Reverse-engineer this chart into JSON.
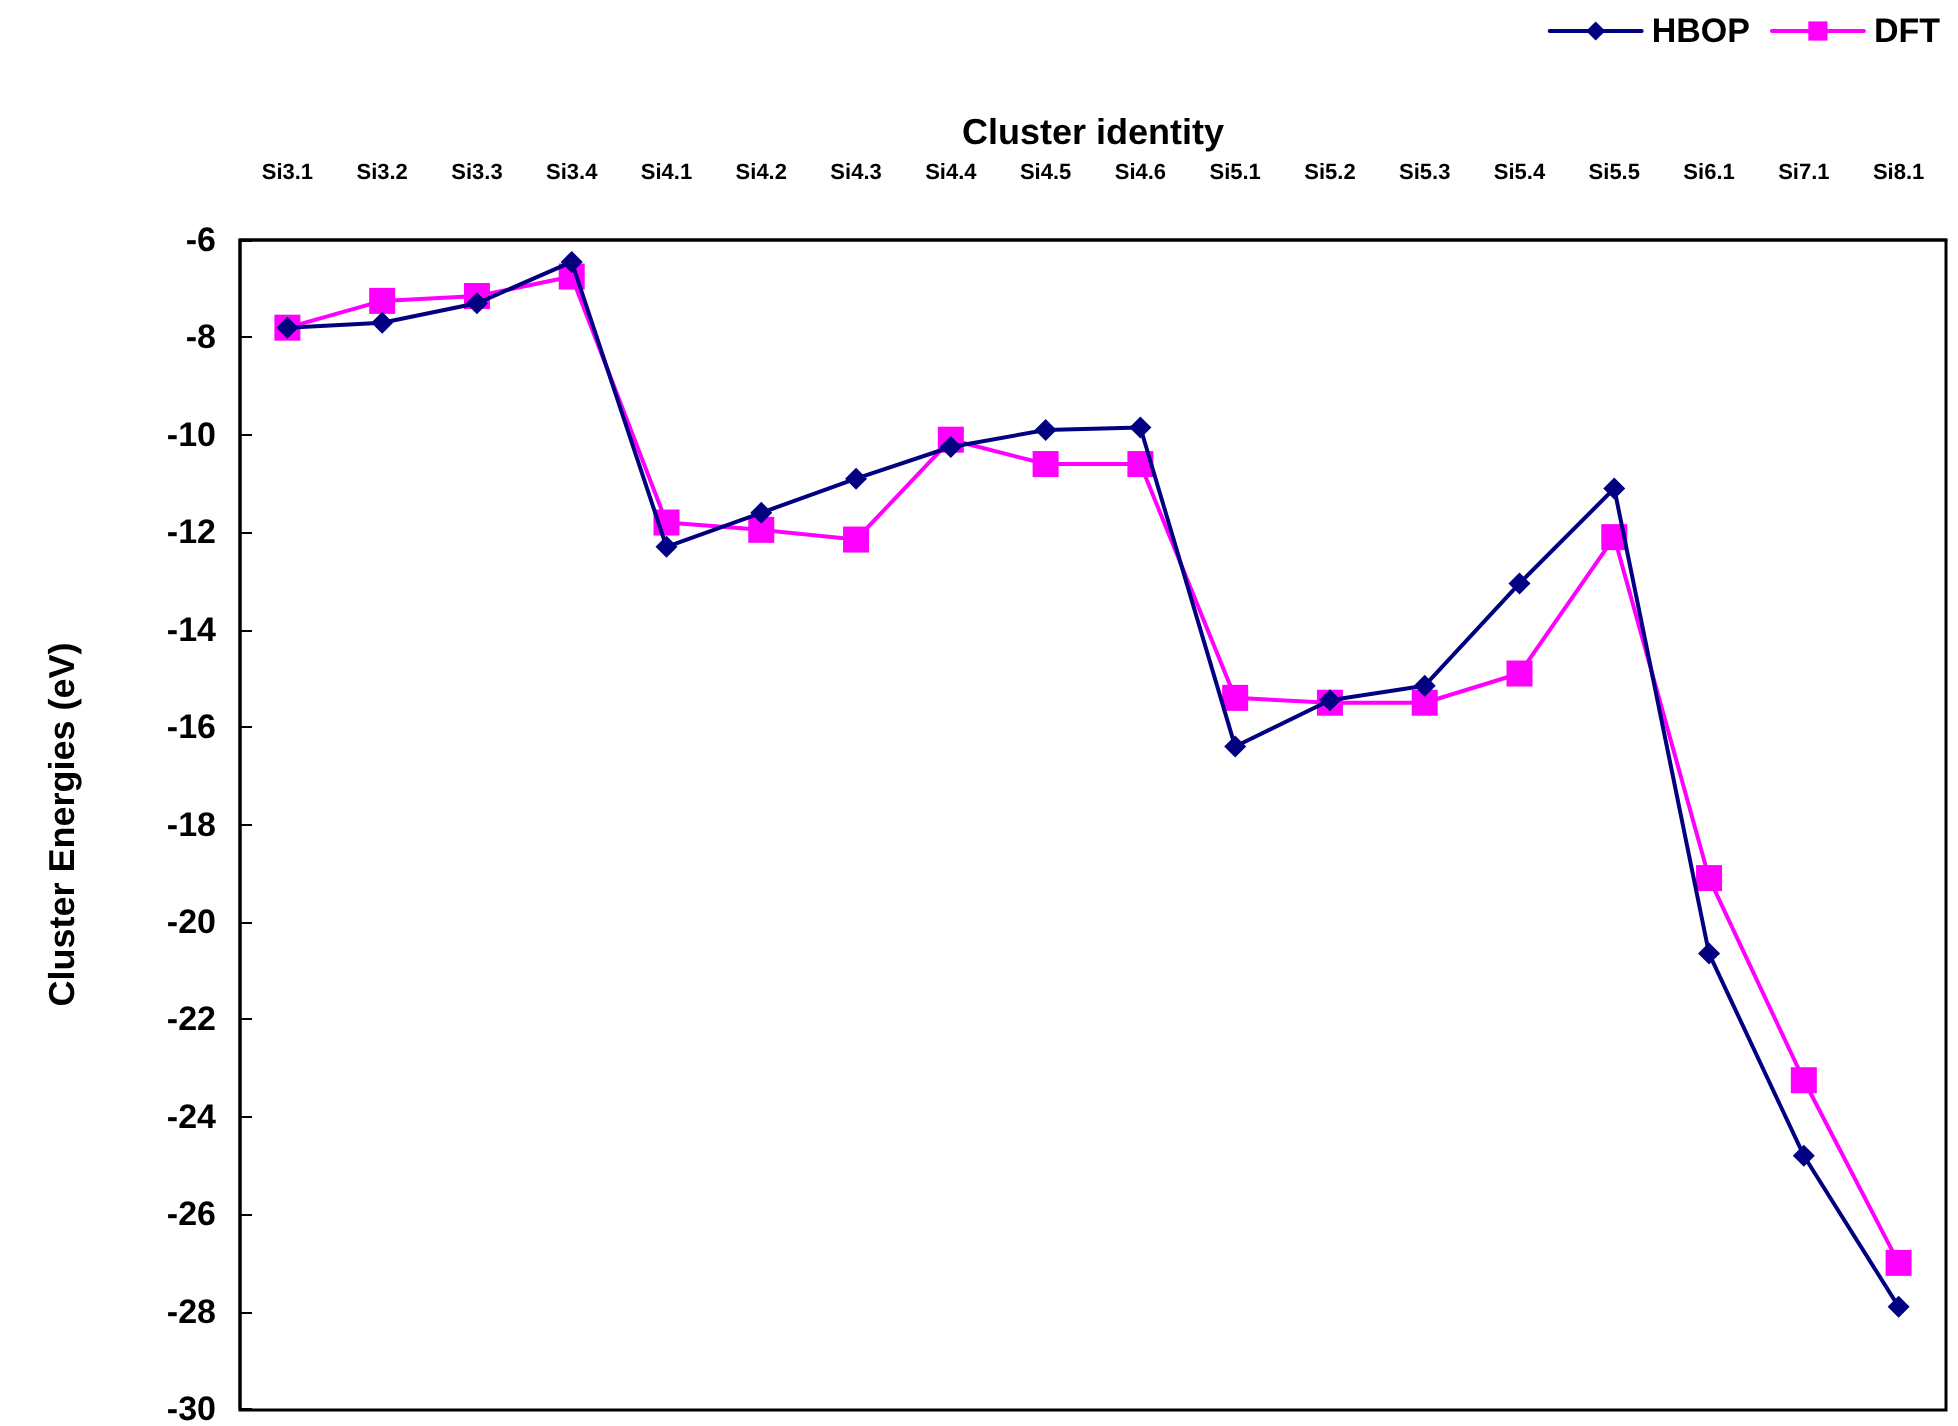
{
  "chart_data": {
    "type": "line",
    "xlabel": "Cluster identity",
    "ylabel": "Cluster Energies (eV)",
    "categories": [
      "Si3.1",
      "Si3.2",
      "Si3.3",
      "Si3.4",
      "Si4.1",
      "Si4.2",
      "Si4.3",
      "Si4.4",
      "Si4.5",
      "Si4.6",
      "Si5.1",
      "Si5.2",
      "Si5.3",
      "Si5.4",
      "Si5.5",
      "Si6.1",
      "Si7.1",
      "Si8.1"
    ],
    "series": [
      {
        "name": "HBOP",
        "color": "#000080",
        "marker": "diamond",
        "values": [
          -7.8,
          -7.7,
          -7.3,
          -6.45,
          -12.3,
          -11.6,
          -10.9,
          -10.25,
          -9.9,
          -9.85,
          -16.4,
          -15.45,
          -15.15,
          -13.05,
          -11.1,
          -20.65,
          -24.8,
          -27.9
        ]
      },
      {
        "name": "DFT",
        "color": "#ff00ff",
        "marker": "square",
        "values": [
          -7.8,
          -7.25,
          -7.15,
          -6.75,
          -11.8,
          -11.95,
          -12.15,
          -10.1,
          -10.6,
          -10.6,
          -15.4,
          -15.5,
          -15.5,
          -14.9,
          -12.1,
          -19.1,
          -23.25,
          -27.0
        ]
      }
    ],
    "ylim": [
      -30,
      -6
    ],
    "yticks": [
      -30,
      -28,
      -26,
      -24,
      -22,
      -20,
      -18,
      -16,
      -14,
      -12,
      -10,
      -8,
      -6
    ],
    "grid": false,
    "legend": "top right",
    "line_style": "solid"
  }
}
